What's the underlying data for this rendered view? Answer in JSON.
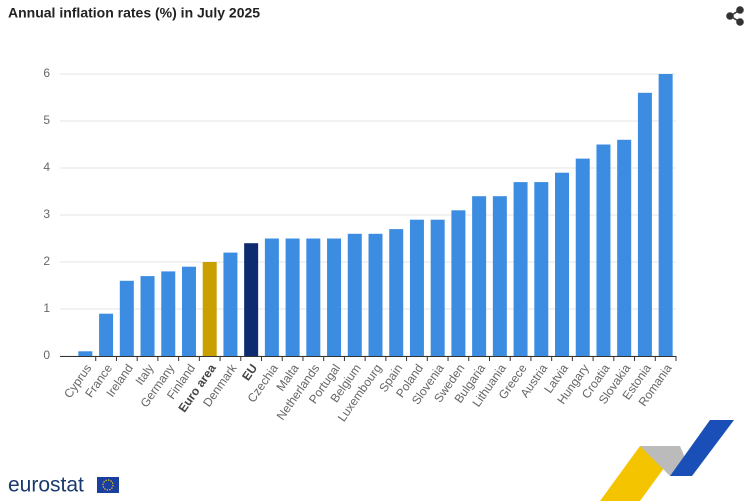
{
  "chart_data": {
    "type": "bar",
    "title": "Annual inflation rates (%) in July 2025",
    "categories": [
      "Cyprus",
      "France",
      "Ireland",
      "Italy",
      "Germany",
      "Finland",
      "Euro area",
      "Denmark",
      "EU",
      "Czechia",
      "Malta",
      "Netherlands",
      "Portugal",
      "Belgium",
      "Luxembourg",
      "Spain",
      "Poland",
      "Slovenia",
      "Sweden",
      "Bulgaria",
      "Lithuania",
      "Greece",
      "Austria",
      "Latvia",
      "Hungary",
      "Croatia",
      "Slovakia",
      "Estonia",
      "Romania"
    ],
    "values": [
      0.1,
      0.9,
      1.6,
      1.7,
      1.8,
      1.9,
      2.0,
      2.2,
      2.4,
      2.5,
      2.5,
      2.5,
      2.5,
      2.6,
      2.6,
      2.7,
      2.9,
      2.9,
      3.1,
      3.4,
      3.4,
      3.7,
      3.7,
      3.9,
      4.2,
      4.5,
      4.6,
      5.6,
      6.0
    ],
    "colors": [
      "#3c8de2",
      "#3c8de2",
      "#3c8de2",
      "#3c8de2",
      "#3c8de2",
      "#3c8de2",
      "#c9a000",
      "#3c8de2",
      "#0d2b6e",
      "#3c8de2",
      "#3c8de2",
      "#3c8de2",
      "#3c8de2",
      "#3c8de2",
      "#3c8de2",
      "#3c8de2",
      "#3c8de2",
      "#3c8de2",
      "#3c8de2",
      "#3c8de2",
      "#3c8de2",
      "#3c8de2",
      "#3c8de2",
      "#3c8de2",
      "#3c8de2",
      "#3c8de2",
      "#3c8de2",
      "#3c8de2",
      "#3c8de2"
    ],
    "bold_categories": [
      false,
      false,
      false,
      false,
      false,
      false,
      true,
      false,
      true,
      false,
      false,
      false,
      false,
      false,
      false,
      false,
      false,
      false,
      false,
      false,
      false,
      false,
      false,
      false,
      false,
      false,
      false,
      false,
      false
    ],
    "ylim": [
      0,
      6
    ],
    "yticks": [
      0,
      1,
      2,
      3,
      4,
      5,
      6
    ],
    "grid": true
  },
  "logo": "eurostat"
}
